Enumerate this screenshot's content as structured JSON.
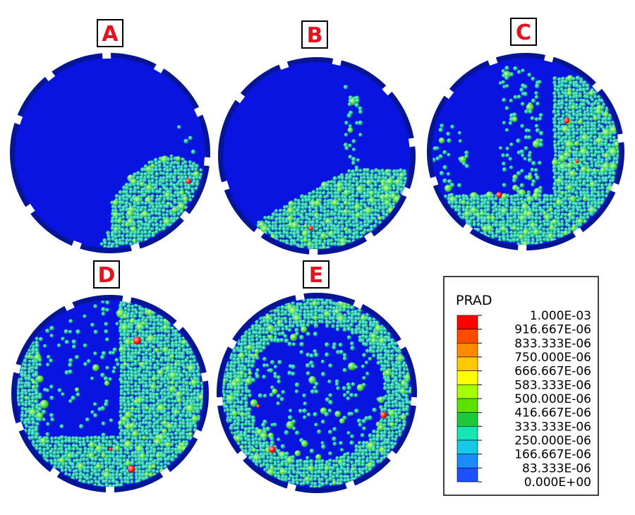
{
  "panels": [
    {
      "id": "A",
      "label": "A"
    },
    {
      "id": "B",
      "label": "B"
    },
    {
      "id": "C",
      "label": "C"
    },
    {
      "id": "D",
      "label": "D"
    },
    {
      "id": "E",
      "label": "E"
    }
  ],
  "legend": {
    "title": "PRAD",
    "bins": [
      {
        "label": "1.000E-03",
        "color": "#ff0000"
      },
      {
        "label": "916.667E-06",
        "color": "#ff4a00"
      },
      {
        "label": "833.333E-06",
        "color": "#ff8a00"
      },
      {
        "label": "750.000E-06",
        "color": "#ffc800"
      },
      {
        "label": "666.667E-06",
        "color": "#ffff00"
      },
      {
        "label": "583.333E-06",
        "color": "#a6ff00"
      },
      {
        "label": "500.000E-06",
        "color": "#5ee000"
      },
      {
        "label": "416.667E-06",
        "color": "#1ec83c"
      },
      {
        "label": "333.333E-06",
        "color": "#17e6b4"
      },
      {
        "label": "250.000E-06",
        "color": "#18c8e8"
      },
      {
        "label": "166.667E-06",
        "color": "#1a8cff"
      },
      {
        "label": "83.333E-06",
        "color": "#1e50ff"
      },
      {
        "label": "0.000E+00",
        "color": "#0000ff"
      }
    ]
  },
  "colors": {
    "drum_fill": "#0a14e0",
    "drum_rim": "#061496",
    "particle_main": "#1fbf9e",
    "particle_light": "#3ad8c8",
    "particle_green": "#48d848",
    "particle_red": "#ff1a1a"
  }
}
